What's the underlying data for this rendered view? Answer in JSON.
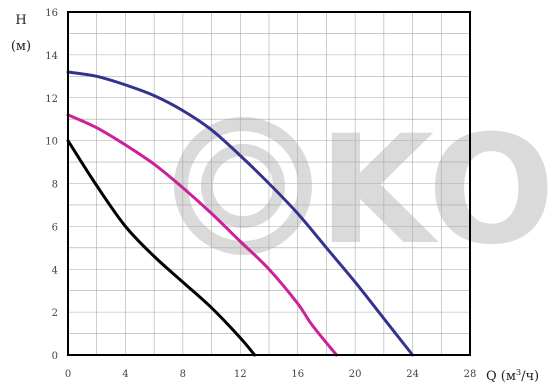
{
  "chart_data": {
    "type": "line",
    "ylabel_symbol": "H",
    "ylabel_unit": "(м)",
    "xlabel": "Q (м",
    "xlabel_sup": "3",
    "xlabel_end": "/ч)",
    "xlim": [
      0,
      28
    ],
    "ylim": [
      0,
      16
    ],
    "x_ticks": [
      0,
      4,
      8,
      12,
      16,
      20,
      24,
      28
    ],
    "y_ticks": [
      0,
      2,
      4,
      6,
      8,
      10,
      12,
      14,
      16
    ],
    "x_minor_step": 2,
    "y_minor_step": 1,
    "grid": true,
    "series": [
      {
        "color": "#000000",
        "points": [
          [
            0,
            10
          ],
          [
            2,
            7.9
          ],
          [
            4,
            6
          ],
          [
            6,
            4.6
          ],
          [
            8,
            3.4
          ],
          [
            10,
            2.2
          ],
          [
            12,
            0.8
          ],
          [
            13,
            0
          ]
        ]
      },
      {
        "color": "#cc2299",
        "points": [
          [
            0,
            11.2
          ],
          [
            2,
            10.6
          ],
          [
            4,
            9.8
          ],
          [
            6,
            8.9
          ],
          [
            8,
            7.8
          ],
          [
            10,
            6.6
          ],
          [
            12,
            5.3
          ],
          [
            14,
            4
          ],
          [
            16,
            2.4
          ],
          [
            17,
            1.4
          ],
          [
            18.7,
            0
          ]
        ]
      },
      {
        "color": "#33338f",
        "points": [
          [
            0,
            13.2
          ],
          [
            2,
            13
          ],
          [
            4,
            12.6
          ],
          [
            6,
            12.1
          ],
          [
            8,
            11.4
          ],
          [
            10,
            10.5
          ],
          [
            12,
            9.3
          ],
          [
            14,
            8
          ],
          [
            16,
            6.6
          ],
          [
            18,
            5
          ],
          [
            20,
            3.4
          ],
          [
            22,
            1.7
          ],
          [
            24,
            0
          ]
        ]
      }
    ]
  },
  "watermark": {
    "text": "KO"
  }
}
